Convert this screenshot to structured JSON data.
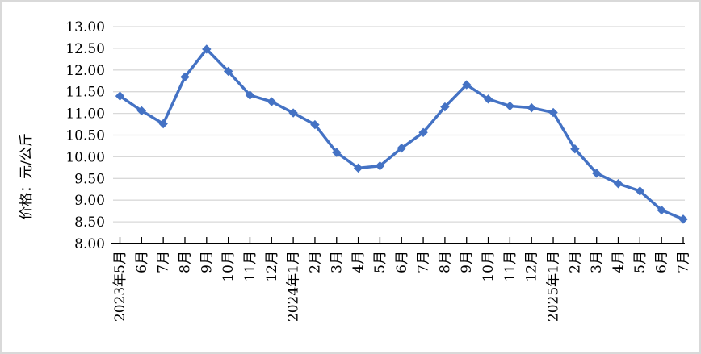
{
  "chart_data": {
    "type": "line",
    "title": "",
    "xlabel": "",
    "ylabel": "价格：元/公斤",
    "categories": [
      "2023年5月",
      "6月",
      "7月",
      "8月",
      "9月",
      "10月",
      "11月",
      "12月",
      "2024年1月",
      "2月",
      "3月",
      "4月",
      "5月",
      "6月",
      "7月",
      "8月",
      "9月",
      "10月",
      "11月",
      "12月",
      "2025年1月",
      "2月",
      "3月",
      "4月",
      "5月",
      "6月",
      "7月"
    ],
    "values": [
      11.4,
      11.06,
      10.76,
      11.84,
      12.48,
      11.97,
      11.42,
      11.27,
      11.01,
      10.74,
      10.1,
      9.74,
      9.79,
      10.2,
      10.56,
      11.15,
      11.66,
      11.33,
      11.17,
      11.13,
      11.02,
      10.18,
      9.62,
      9.38,
      9.21,
      8.77,
      8.56
    ],
    "ylim": [
      8.0,
      13.0
    ],
    "ytick_step": 0.5,
    "ytick_labels": [
      "13.00",
      "12.50",
      "12.00",
      "11.50",
      "11.00",
      "10.50",
      "10.00",
      "9.50",
      "9.00",
      "8.50",
      "8.00"
    ],
    "grid": true,
    "legend": "none",
    "marker": "diamond",
    "line_color": "#4472C4"
  },
  "colors": {
    "line": "#4472C4",
    "gridline": "#D9D9D9",
    "axis": "#000000",
    "text": "#000000",
    "frame_border": "#D9D9D9",
    "background": "#FFFFFF"
  }
}
